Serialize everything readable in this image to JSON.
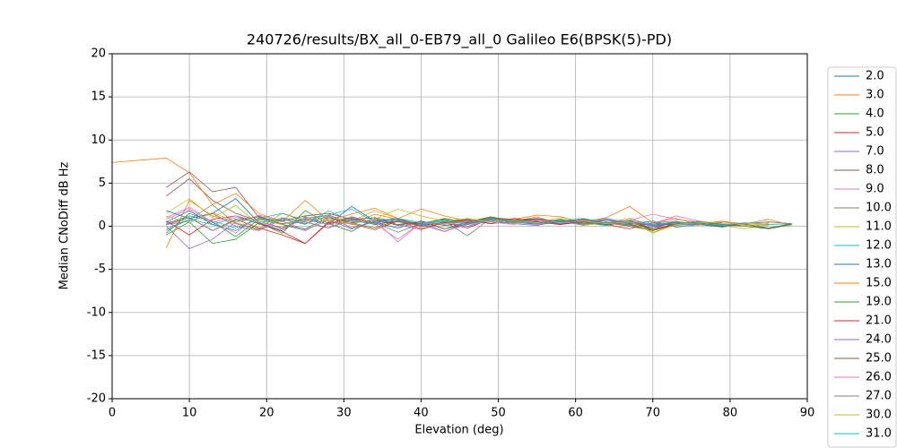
{
  "chart_data": {
    "type": "line",
    "title": "240726/results/BX_all_0-EB79_all_0 Galileo E6(BPSK(5)-PD)",
    "xlabel": "Elevation (deg)",
    "ylabel": "Median CNoDiff dB Hz",
    "xlim": [
      0,
      90
    ],
    "ylim": [
      -20,
      20
    ],
    "xticks": [
      0,
      10,
      20,
      30,
      40,
      50,
      60,
      70,
      80,
      90
    ],
    "yticks": [
      -20,
      -15,
      -10,
      -5,
      0,
      5,
      10,
      15,
      20
    ],
    "grid": true,
    "legend": "outside-right",
    "x": [
      0,
      7,
      10,
      13,
      16,
      19,
      22,
      25,
      28,
      31,
      34,
      37,
      40,
      43,
      46,
      49,
      52,
      55,
      58,
      61,
      64,
      67,
      70,
      73,
      76,
      79,
      82,
      85,
      88
    ],
    "series": [
      {
        "name": "2.0",
        "color": "#1f77b4",
        "values": [
          null,
          0.5,
          1.8,
          0.2,
          -0.5,
          1.0,
          0.3,
          0.8,
          0.2,
          1.1,
          0.4,
          -0.2,
          0.6,
          0.1,
          0.3,
          0.9,
          0.5,
          0.2,
          0.7,
          0.4,
          0.1,
          0.6,
          0.0,
          0.3,
          0.2,
          -0.1,
          0.4,
          null,
          null
        ]
      },
      {
        "name": "3.0",
        "color": "#ff7f0e",
        "values": [
          null,
          -2.5,
          3.0,
          1.2,
          0.4,
          -0.3,
          1.5,
          0.6,
          1.0,
          0.2,
          1.4,
          0.8,
          -0.1,
          0.5,
          0.9,
          0.3,
          0.6,
          1.1,
          0.2,
          0.7,
          0.4,
          0.9,
          0.1,
          0.5,
          0.3,
          0.6,
          0.2,
          0.1,
          null
        ]
      },
      {
        "name": "4.0",
        "color": "#2ca02c",
        "values": [
          null,
          -1.0,
          0.5,
          -2.0,
          -1.5,
          0.4,
          -0.8,
          1.8,
          0.3,
          -0.6,
          0.9,
          0.2,
          0.5,
          -0.3,
          0.4,
          1.0,
          0.6,
          0.3,
          0.8,
          0.2,
          0.5,
          0.1,
          -0.4,
          0.3,
          0.6,
          0.0,
          0.2,
          -0.2,
          0.3
        ]
      },
      {
        "name": "5.0",
        "color": "#d62728",
        "values": [
          null,
          0.2,
          1.0,
          -0.5,
          0.8,
          -0.2,
          -1.0,
          -2.0,
          0.5,
          0.3,
          -0.4,
          0.6,
          0.1,
          0.4,
          -0.2,
          0.8,
          0.5,
          0.9,
          0.3,
          0.6,
          0.2,
          -0.3,
          0.4,
          0.1,
          null,
          null,
          null,
          null,
          null
        ]
      },
      {
        "name": "7.0",
        "color": "#9467bd",
        "values": [
          null,
          0.0,
          -2.6,
          -1.5,
          0.5,
          1.2,
          0.2,
          -0.5,
          0.8,
          -0.3,
          0.6,
          0.2,
          -0.4,
          0.5,
          0.0,
          0.7,
          0.3,
          0.1,
          0.6,
          0.4,
          0.2,
          0.5,
          -0.2,
          0.1,
          0.3,
          null,
          null,
          null,
          null
        ]
      },
      {
        "name": "8.0",
        "color": "#8c564b",
        "values": [
          null,
          3.5,
          5.5,
          3.0,
          1.5,
          0.6,
          -0.2,
          0.9,
          1.3,
          0.4,
          0.8,
          0.1,
          0.6,
          -0.3,
          0.2,
          0.9,
          0.5,
          0.7,
          0.3,
          0.8,
          0.4,
          0.0,
          -0.5,
          0.2,
          0.4,
          0.1,
          0.3,
          0.5,
          0.3
        ]
      },
      {
        "name": "9.0",
        "color": "#e377c2",
        "values": [
          null,
          1.0,
          2.2,
          0.5,
          -0.8,
          1.3,
          0.6,
          -0.4,
          0.7,
          1.0,
          0.3,
          -1.5,
          0.4,
          -0.6,
          0.2,
          0.5,
          0.8,
          0.2,
          0.6,
          0.9,
          0.3,
          0.7,
          1.4,
          0.8,
          0.5,
          0.2,
          0.4,
          null,
          null
        ]
      },
      {
        "name": "10.0",
        "color": "#7f7f7f",
        "values": [
          null,
          -0.5,
          0.8,
          2.5,
          0.3,
          -0.4,
          1.0,
          0.5,
          -0.2,
          0.7,
          0.4,
          -0.7,
          0.3,
          0.6,
          -1.1,
          0.9,
          0.4,
          0.6,
          0.2,
          0.5,
          0.8,
          0.3,
          0.1,
          0.4,
          0.2,
          0.0,
          null,
          null,
          null
        ]
      },
      {
        "name": "11.0",
        "color": "#bcbd22",
        "values": [
          null,
          1.5,
          3.2,
          1.0,
          2.4,
          0.2,
          0.8,
          0.3,
          1.1,
          0.6,
          1.8,
          0.9,
          0.4,
          0.2,
          0.7,
          0.5,
          0.3,
          0.8,
          0.6,
          0.1,
          0.4,
          0.6,
          -0.8,
          0.2,
          0.5,
          0.1,
          -0.3,
          0.4,
          null
        ]
      },
      {
        "name": "12.0",
        "color": "#17becf",
        "values": [
          null,
          0.3,
          1.2,
          0.6,
          -0.2,
          0.9,
          1.5,
          0.7,
          1.3,
          2.0,
          0.5,
          0.8,
          0.2,
          0.6,
          0.4,
          1.0,
          0.7,
          0.5,
          0.3,
          0.6,
          0.9,
          0.4,
          0.2,
          0.5,
          0.3,
          null,
          null,
          null,
          null
        ]
      },
      {
        "name": "13.0",
        "color": "#1f77b4",
        "values": [
          null,
          1.8,
          0.9,
          1.5,
          3.2,
          0.4,
          -0.5,
          1.1,
          0.2,
          2.3,
          0.6,
          0.9,
          0.1,
          0.4,
          0.8,
          0.3,
          0.6,
          0.9,
          0.2,
          0.5,
          0.7,
          0.3,
          0.6,
          -0.1,
          0.2,
          0.4,
          null,
          null,
          null
        ]
      },
      {
        "name": "15.0",
        "color": "#ff7f0e",
        "values": [
          7.4,
          7.9,
          6.2,
          2.5,
          3.8,
          1.5,
          0.5,
          3.0,
          0.7,
          1.4,
          2.1,
          0.9,
          2.0,
          1.2,
          0.6,
          1.0,
          0.8,
          1.3,
          1.1,
          0.5,
          1.0,
          2.3,
          0.4,
          0.9,
          0.2,
          0.5,
          0.3,
          0.8,
          0.1
        ]
      },
      {
        "name": "19.0",
        "color": "#2ca02c",
        "values": [
          null,
          -0.8,
          1.5,
          0.5,
          -1.2,
          0.8,
          0.2,
          -0.3,
          1.0,
          0.4,
          -0.2,
          0.7,
          0.3,
          0.9,
          0.5,
          1.1,
          0.6,
          0.3,
          0.8,
          0.5,
          0.2,
          0.6,
          -0.5,
          0.3,
          0.5,
          0.2,
          0.0,
          -0.3,
          0.2
        ]
      },
      {
        "name": "21.0",
        "color": "#d62728",
        "values": [
          null,
          0.6,
          -1.0,
          0.8,
          1.2,
          0.3,
          -0.6,
          -2.0,
          0.4,
          0.9,
          0.2,
          0.6,
          -0.3,
          0.4,
          0.7,
          0.3,
          0.9,
          0.5,
          0.2,
          0.6,
          0.3,
          0.7,
          -0.4,
          0.2,
          null,
          null,
          null,
          null,
          null
        ]
      },
      {
        "name": "24.0",
        "color": "#9467bd",
        "values": [
          null,
          0.2,
          0.6,
          1.5,
          0.0,
          -0.5,
          0.8,
          0.3,
          1.2,
          -0.2,
          0.5,
          0.8,
          0.2,
          -0.6,
          0.3,
          0.6,
          0.4,
          0.8,
          0.5,
          0.2,
          0.7,
          0.4,
          0.1,
          0.3,
          null,
          null,
          null,
          null,
          null
        ]
      },
      {
        "name": "25.0",
        "color": "#8c564b",
        "values": [
          null,
          4.5,
          6.3,
          4.0,
          4.5,
          1.0,
          0.6,
          1.2,
          1.5,
          0.8,
          1.0,
          0.5,
          0.3,
          0.8,
          0.4,
          1.0,
          0.7,
          0.9,
          0.5,
          0.8,
          0.4,
          0.2,
          -0.2,
          0.5,
          0.3,
          0.0,
          0.2,
          -0.3,
          0.3
        ]
      },
      {
        "name": "26.0",
        "color": "#e377c2",
        "values": [
          null,
          0.8,
          2.0,
          0.4,
          1.2,
          0.6,
          -0.3,
          0.9,
          0.2,
          0.5,
          0.7,
          -1.8,
          0.4,
          0.3,
          0.6,
          0.5,
          0.2,
          0.7,
          0.4,
          0.6,
          0.8,
          0.5,
          0.3,
          1.2,
          0.6,
          0.3,
          0.2,
          null,
          null
        ]
      },
      {
        "name": "27.0",
        "color": "#7f7f7f",
        "values": [
          null,
          0.4,
          1.0,
          -0.5,
          0.7,
          1.1,
          0.3,
          0.5,
          -0.2,
          0.8,
          0.4,
          0.6,
          0.0,
          0.5,
          0.3,
          0.9,
          0.6,
          0.4,
          0.7,
          0.3,
          0.5,
          0.2,
          0.4,
          0.6,
          0.1,
          null,
          null,
          null,
          null
        ]
      },
      {
        "name": "30.0",
        "color": "#bcbd22",
        "values": [
          null,
          1.2,
          0.4,
          1.6,
          0.5,
          0.9,
          0.2,
          1.0,
          0.6,
          0.3,
          0.8,
          2.0,
          1.2,
          0.6,
          0.9,
          0.5,
          0.7,
          0.4,
          1.0,
          0.6,
          0.3,
          0.5,
          -0.7,
          0.2,
          0.4,
          0.5,
          0.1,
          0.3,
          null
        ]
      },
      {
        "name": "31.0",
        "color": "#17becf",
        "values": [
          null,
          -0.3,
          0.8,
          0.2,
          1.0,
          0.4,
          0.9,
          0.2,
          1.8,
          0.6,
          0.3,
          0.9,
          0.4,
          0.7,
          0.2,
          0.8,
          0.5,
          0.3,
          0.6,
          0.9,
          0.4,
          0.7,
          0.2,
          0.5,
          0.3,
          0.1,
          0.4,
          0.2,
          0.3
        ]
      }
    ]
  }
}
